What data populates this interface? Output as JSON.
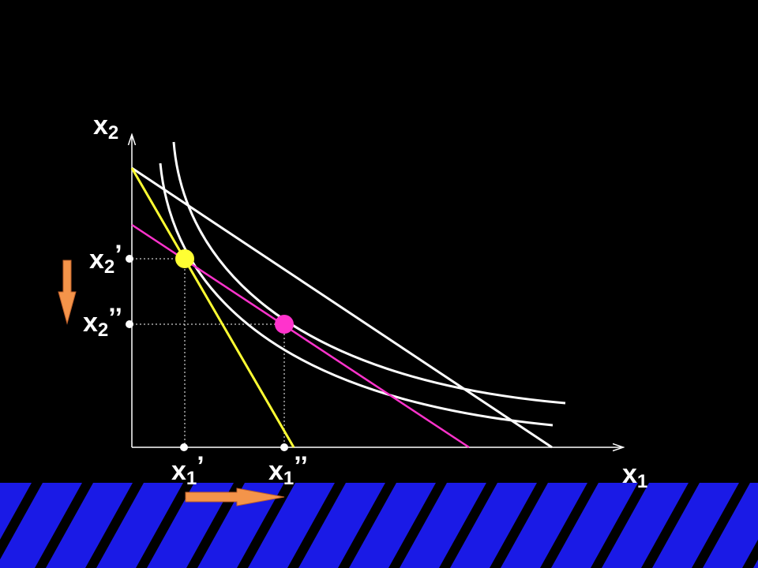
{
  "labels": {
    "y_axis": {
      "main": "x",
      "sub": "2",
      "prime": ""
    },
    "x_axis": {
      "main": "x",
      "sub": "1",
      "prime": ""
    },
    "x2_first": {
      "main": "x",
      "sub": "2",
      "prime": "’"
    },
    "x2_second": {
      "main": "x",
      "sub": "2",
      "prime": "’’"
    },
    "x1_first": {
      "main": "x",
      "sub": "1",
      "prime": "’"
    },
    "x1_second": {
      "main": "x",
      "sub": "1",
      "prime": "’’"
    }
  }
}
